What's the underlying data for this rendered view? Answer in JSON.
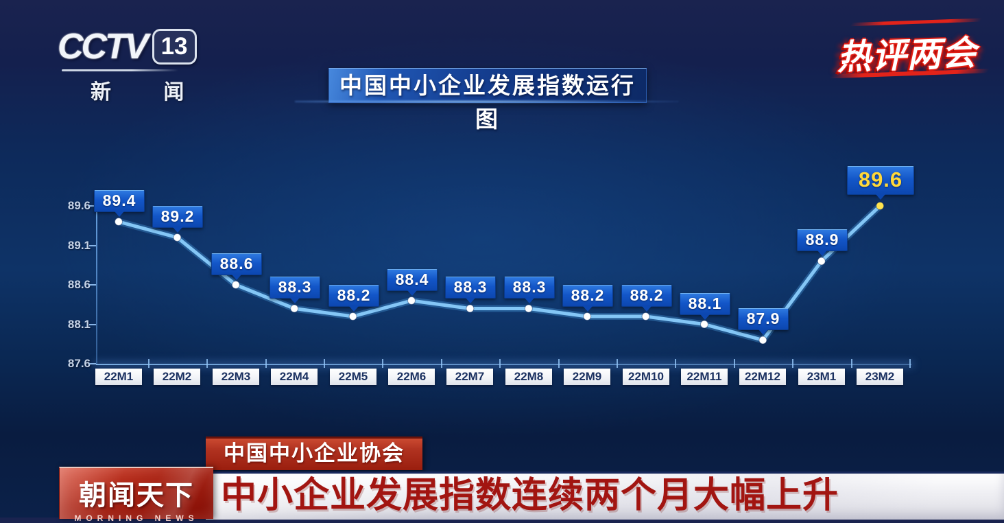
{
  "broadcaster": {
    "channel": "CCTV",
    "channel_number": "13",
    "channel_label": "新 闻"
  },
  "corner_banner": {
    "text": "热评两会"
  },
  "chart_data": {
    "type": "line",
    "title": "中国中小企业发展指数运行图",
    "x_labels": [
      "22M1",
      "22M2",
      "22M3",
      "22M4",
      "22M5",
      "22M6",
      "22M7",
      "22M8",
      "22M9",
      "22M10",
      "22M11",
      "22M12",
      "23M1",
      "23M2"
    ],
    "values": [
      89.4,
      89.2,
      88.6,
      88.3,
      88.2,
      88.4,
      88.3,
      88.3,
      88.2,
      88.2,
      88.1,
      87.9,
      88.9,
      89.6
    ],
    "y_ticks": [
      89.6,
      89.1,
      88.6,
      88.1,
      87.6
    ],
    "ylim": [
      87.6,
      89.6
    ],
    "grid": false,
    "legend": null,
    "xlabel": "",
    "ylabel": "",
    "line_color": "#84c6f6",
    "line_glow_color": "#4a9de0",
    "point_color": "#ffffff",
    "last_point_color": "#ffe34e",
    "highlight_text_color": "#ffd83a"
  },
  "lower_thirds": {
    "source_tag": "中国中小企业协会",
    "program_logo": {
      "title": "朝闻天下",
      "subtitle": "MORNING NEWS"
    },
    "headline": "中小企业发展指数连续两个月大幅上升"
  }
}
